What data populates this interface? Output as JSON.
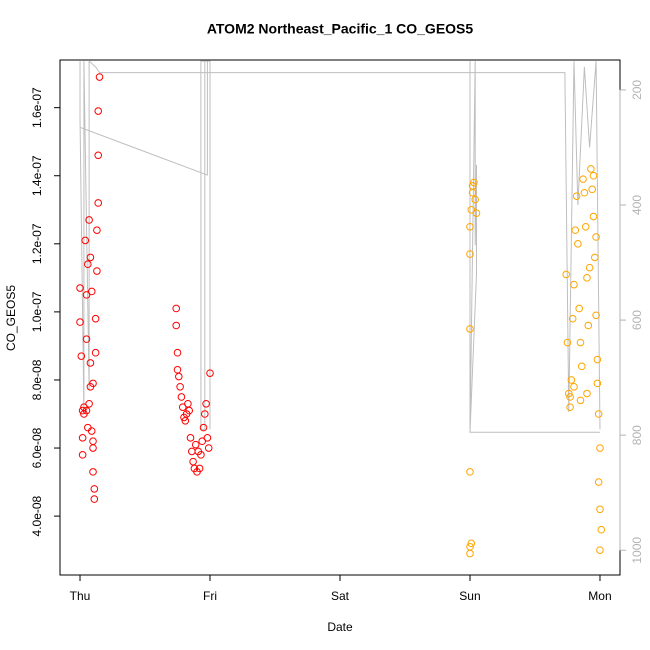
{
  "chart_data": {
    "type": "scatter",
    "title": "ATOM2 Northeast_Pacific_1 CO_GEOS5",
    "xlabel": "Date",
    "ylabel": "CO_GEOS5",
    "xlim": [
      -0.154,
      4.154
    ],
    "xticks": [
      {
        "value": 0,
        "label": "Thu"
      },
      {
        "value": 1,
        "label": "Fri"
      },
      {
        "value": 2,
        "label": "Sat"
      },
      {
        "value": 3,
        "label": "Sun"
      },
      {
        "value": 4,
        "label": "Mon"
      }
    ],
    "ylim": [
      2.27e-08,
      1.74e-07
    ],
    "yticks": [
      {
        "value": 4e-08,
        "label": "4.0e-08"
      },
      {
        "value": 6e-08,
        "label": "6.0e-08"
      },
      {
        "value": 8e-08,
        "label": "8.0e-08"
      },
      {
        "value": 1e-07,
        "label": "1.0e-07"
      },
      {
        "value": 1.2e-07,
        "label": "1.2e-07"
      },
      {
        "value": 1.4e-07,
        "label": "1.4e-07"
      },
      {
        "value": 1.6e-07,
        "label": "1.6e-07"
      }
    ],
    "y2lim": [
      1043,
      148
    ],
    "y2ticks": [
      200,
      400,
      600,
      800,
      1000
    ],
    "series": [
      {
        "color": "#ff0000",
        "x": [
          0.0,
          0.0,
          0.01,
          0.02,
          0.02,
          0.03,
          0.03,
          0.04,
          0.05,
          0.05,
          0.06,
          0.06,
          0.07,
          0.07,
          0.08,
          0.08,
          0.09,
          0.09,
          0.1,
          0.1,
          0.11,
          0.11,
          0.12,
          0.12,
          0.13,
          0.13,
          0.14,
          0.14,
          0.14,
          0.15,
          0.1,
          0.1,
          0.05,
          0.02,
          0.08,
          0.74,
          0.74,
          0.75,
          0.75,
          0.76,
          0.77,
          0.78,
          0.79,
          0.8,
          0.81,
          0.82,
          0.83,
          0.84,
          0.85,
          0.86,
          0.87,
          0.88,
          0.9,
          0.92,
          0.93,
          0.94,
          0.95,
          0.96,
          0.97,
          1.0,
          0.98,
          0.99,
          0.89,
          0.91
        ],
        "values": [
          9.7e-08,
          1.07e-07,
          8.7e-08,
          6.3e-08,
          5.8e-08,
          7.2e-08,
          7e-08,
          1.21e-07,
          1.05e-07,
          7.1e-08,
          1.14e-07,
          6.6e-08,
          1.27e-07,
          7.3e-08,
          1.16e-07,
          7.8e-08,
          1.06e-07,
          6.5e-08,
          6e-08,
          5.3e-08,
          4.8e-08,
          4.5e-08,
          8.8e-08,
          9.8e-08,
          1.12e-07,
          1.24e-07,
          1.32e-07,
          1.46e-07,
          1.59e-07,
          1.69e-07,
          7.9e-08,
          6.2e-08,
          9.2e-08,
          7.1e-08,
          8.5e-08,
          1.01e-07,
          9.6e-08,
          8.8e-08,
          8.3e-08,
          8.1e-08,
          7.8e-08,
          7.5e-08,
          7.2e-08,
          6.9e-08,
          6.8e-08,
          7e-08,
          7.3e-08,
          7.1e-08,
          6.3e-08,
          5.9e-08,
          5.6e-08,
          5.4e-08,
          5.3e-08,
          5.4e-08,
          5.8e-08,
          6.2e-08,
          6.6e-08,
          7e-08,
          7.3e-08,
          8.2e-08,
          6.3e-08,
          6e-08,
          6.1e-08,
          5.9e-08
        ]
      },
      {
        "color": "#ffa500",
        "x": [
          3.0,
          3.0,
          3.0,
          3.0,
          3.01,
          3.02,
          3.03,
          3.04,
          3.05,
          3.0,
          3.0,
          3.01,
          3.02,
          3.74,
          3.75,
          3.76,
          3.77,
          3.78,
          3.79,
          3.8,
          3.81,
          3.82,
          3.83,
          3.84,
          3.85,
          3.86,
          3.87,
          3.88,
          3.89,
          3.9,
          3.91,
          3.92,
          3.93,
          3.94,
          3.95,
          3.96,
          3.97,
          3.98,
          3.99,
          4.0,
          3.99,
          4.0,
          4.01,
          4.0,
          3.77,
          3.8,
          3.85,
          3.9,
          3.95,
          3.97,
          3.98
        ],
        "values": [
          5.3e-08,
          9.5e-08,
          1.17e-07,
          1.25e-07,
          1.3e-07,
          1.35e-07,
          1.38e-07,
          1.33e-07,
          1.29e-07,
          2.9e-08,
          3.1e-08,
          3.2e-08,
          1.37e-07,
          1.11e-07,
          9.1e-08,
          7.6e-08,
          7.2e-08,
          8e-08,
          9.8e-08,
          1.08e-07,
          1.24e-07,
          1.34e-07,
          1.2e-07,
          1.01e-07,
          9.1e-08,
          8.4e-08,
          1.39e-07,
          1.35e-07,
          1.25e-07,
          1.1e-07,
          9.6e-08,
          1.13e-07,
          1.42e-07,
          1.36e-07,
          1.28e-07,
          1.16e-07,
          9.9e-08,
          8.6e-08,
          7e-08,
          6e-08,
          5e-08,
          4.2e-08,
          3.6e-08,
          3e-08,
          7.5e-08,
          7.8e-08,
          7.4e-08,
          7.6e-08,
          1.4e-07,
          1.22e-07,
          7.9e-08
        ]
      },
      {
        "color": "#bebebe",
        "axis": "y2",
        "line": true,
        "x": [
          0,
          0,
          0.03,
          0.03,
          0.07,
          0.07,
          0.12,
          0.15,
          3.73,
          3.76,
          3.8,
          3.83,
          3.88,
          3.92,
          3.97,
          4.0,
          null,
          0,
          0.98,
          0.98,
          0.93,
          0.93,
          0.96,
          0.96,
          1.0,
          1.0,
          null,
          3.0,
          3.0,
          3.04,
          3.04,
          3.05,
          3.05,
          3.0,
          4.0
        ],
        "values": [
          150,
          250,
          760,
          150,
          720,
          150,
          160,
          170,
          170,
          760,
          150,
          400,
          160,
          300,
          150,
          790,
          null,
          265,
          348,
          150,
          150,
          790,
          790,
          150,
          150,
          790,
          null,
          150,
          795,
          150,
          470,
          330,
          520,
          795,
          795
        ]
      }
    ]
  }
}
